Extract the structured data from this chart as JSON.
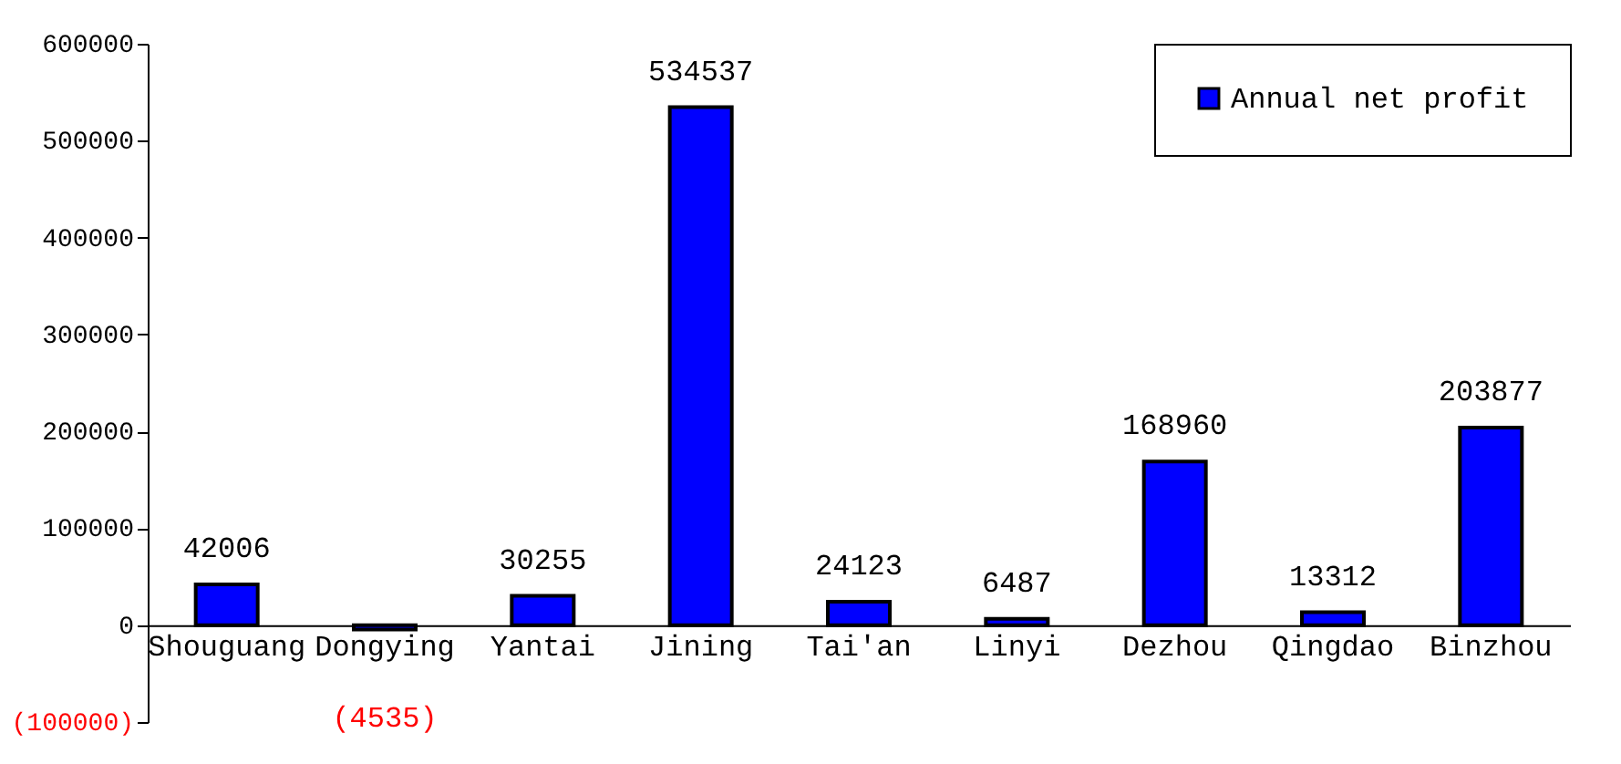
{
  "chart_data": {
    "type": "bar",
    "categories": [
      "Shouguang",
      "Dongying",
      "Yantai",
      "Jining",
      "Tai'an",
      "Linyi",
      "Dezhou",
      "Qingdao",
      "Binzhou"
    ],
    "series": [
      {
        "name": "Annual net profit",
        "color": "#0000ff",
        "values": [
          42006,
          -4535,
          30255,
          534537,
          24123,
          6487,
          168960,
          13312,
          203877
        ]
      }
    ],
    "value_labels": [
      "42006",
      "(4535)",
      "30255",
      "534537",
      "24123",
      "6487",
      "168960",
      "13312",
      "203877"
    ],
    "ylim": [
      -100000,
      600000
    ],
    "yticks": [
      {
        "value": -100000,
        "label": "(100000)"
      },
      0,
      100000,
      200000,
      300000,
      400000,
      500000,
      600000
    ],
    "grid": false,
    "legend": "top right"
  }
}
